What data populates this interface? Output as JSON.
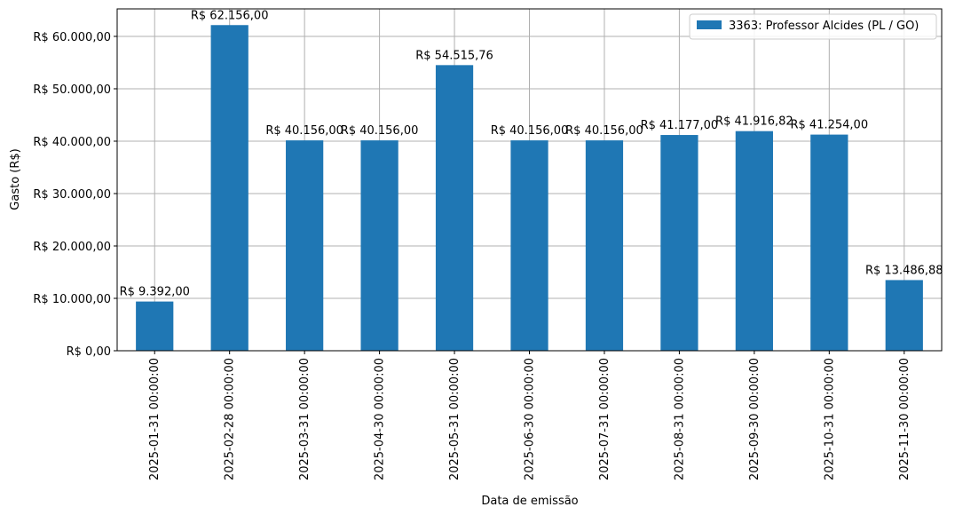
{
  "chart_data": {
    "type": "bar",
    "title": "",
    "xlabel": "Data de emissão",
    "ylabel": "Gasto (R$)",
    "ylim": [
      0,
      65250
    ],
    "yticks": [
      0,
      10000,
      20000,
      30000,
      40000,
      50000,
      60000
    ],
    "ytick_labels": [
      "R$ 0,00",
      "R$ 10.000,00",
      "R$ 20.000,00",
      "R$ 30.000,00",
      "R$ 40.000,00",
      "R$ 50.000,00",
      "R$ 60.000,00"
    ],
    "grid": true,
    "legend_position": "top-right",
    "color": "#1f77b4",
    "categories": [
      "2025-01-31 00:00:00",
      "2025-02-28 00:00:00",
      "2025-03-31 00:00:00",
      "2025-04-30 00:00:00",
      "2025-05-31 00:00:00",
      "2025-06-30 00:00:00",
      "2025-07-31 00:00:00",
      "2025-08-31 00:00:00",
      "2025-09-30 00:00:00",
      "2025-10-31 00:00:00",
      "2025-11-30 00:00:00"
    ],
    "series": [
      {
        "name": "3363: Professor Alcides (PL / GO)",
        "values": [
          9392.0,
          62156.0,
          40156.0,
          40156.0,
          54515.76,
          40156.0,
          40156.0,
          41177.0,
          41916.82,
          41254.0,
          13486.88
        ],
        "labels": [
          "R$ 9.392,00",
          "R$ 62.156,00",
          "R$ 40.156,00",
          "R$ 40.156,00",
          "R$ 54.515,76",
          "R$ 40.156,00",
          "R$ 40.156,00",
          "R$ 41.177,00",
          "R$ 41.916,82",
          "R$ 41.254,00",
          "R$ 13.486,88"
        ]
      }
    ]
  }
}
